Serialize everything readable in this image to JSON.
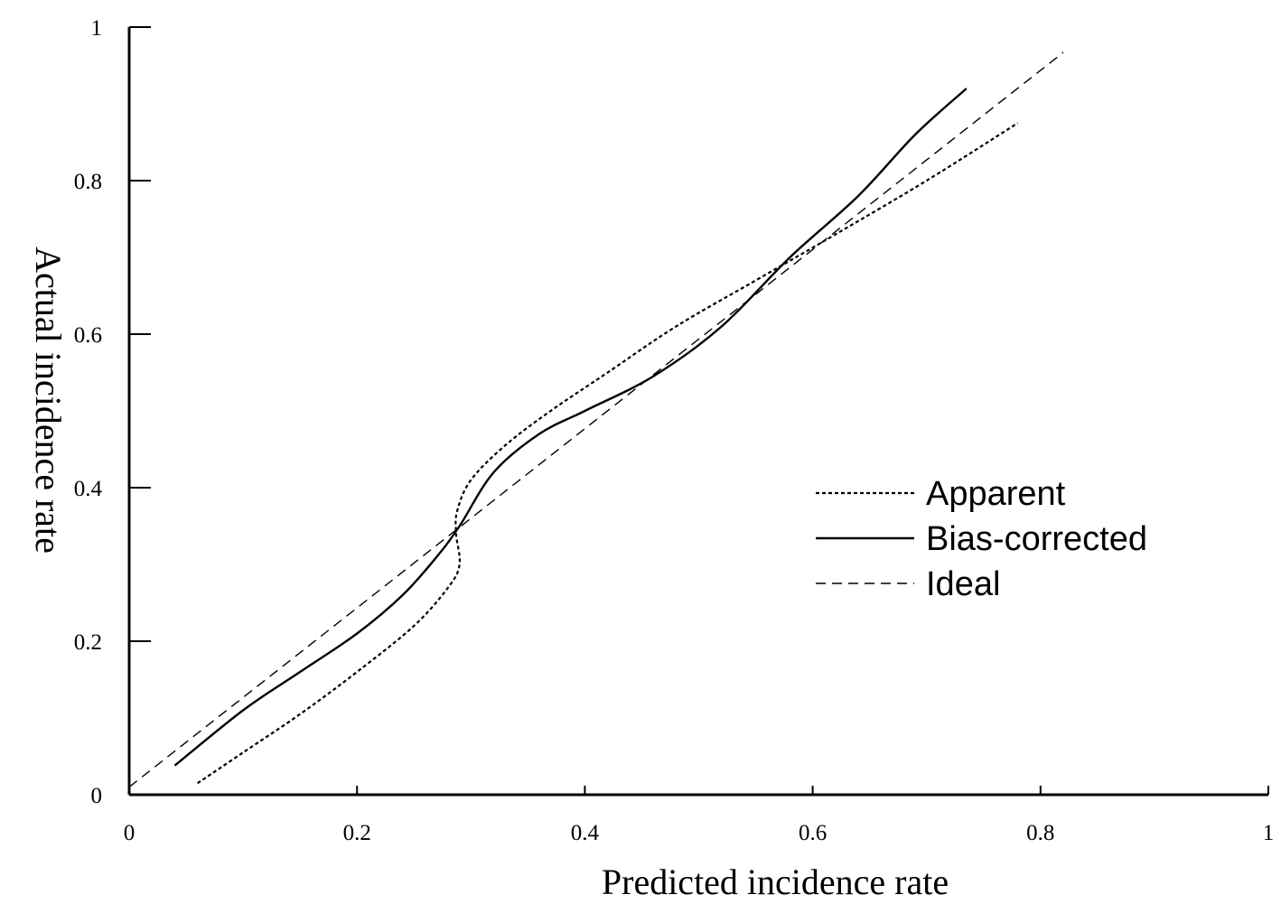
{
  "chart_data": {
    "type": "line",
    "title": "",
    "xlabel": "Predicted incidence rate",
    "ylabel": "Actual incidence rate",
    "xlim": [
      0,
      1
    ],
    "ylim": [
      0,
      1
    ],
    "xticks": [
      "0",
      "0.2",
      "0.4",
      "0.6",
      "0.8",
      "1"
    ],
    "yticks": [
      "0",
      "0.2",
      "0.4",
      "0.6",
      "0.8",
      "1"
    ],
    "grid": false,
    "legend_position": "center-right",
    "series": [
      {
        "name": "Apparent",
        "style": "dotted",
        "color": "#000000",
        "points": [
          [
            0.06,
            0.015
          ],
          [
            0.1,
            0.055
          ],
          [
            0.15,
            0.105
          ],
          [
            0.2,
            0.16
          ],
          [
            0.25,
            0.22
          ],
          [
            0.28,
            0.27
          ],
          [
            0.29,
            0.3
          ],
          [
            0.287,
            0.34
          ],
          [
            0.288,
            0.37
          ],
          [
            0.3,
            0.41
          ],
          [
            0.33,
            0.455
          ],
          [
            0.37,
            0.5
          ],
          [
            0.42,
            0.55
          ],
          [
            0.48,
            0.61
          ],
          [
            0.55,
            0.67
          ],
          [
            0.62,
            0.73
          ],
          [
            0.7,
            0.8
          ],
          [
            0.78,
            0.875
          ]
        ]
      },
      {
        "name": "Bias-corrected",
        "style": "solid",
        "color": "#000000",
        "points": [
          [
            0.04,
            0.038
          ],
          [
            0.1,
            0.11
          ],
          [
            0.15,
            0.16
          ],
          [
            0.2,
            0.21
          ],
          [
            0.24,
            0.26
          ],
          [
            0.27,
            0.31
          ],
          [
            0.29,
            0.35
          ],
          [
            0.32,
            0.42
          ],
          [
            0.36,
            0.47
          ],
          [
            0.4,
            0.5
          ],
          [
            0.46,
            0.545
          ],
          [
            0.52,
            0.61
          ],
          [
            0.58,
            0.7
          ],
          [
            0.64,
            0.78
          ],
          [
            0.69,
            0.86
          ],
          [
            0.735,
            0.92
          ]
        ]
      },
      {
        "name": "Ideal",
        "style": "dashed",
        "color": "#000000",
        "points": [
          [
            0.0,
            0.01
          ],
          [
            0.82,
            0.967
          ]
        ]
      }
    ]
  }
}
